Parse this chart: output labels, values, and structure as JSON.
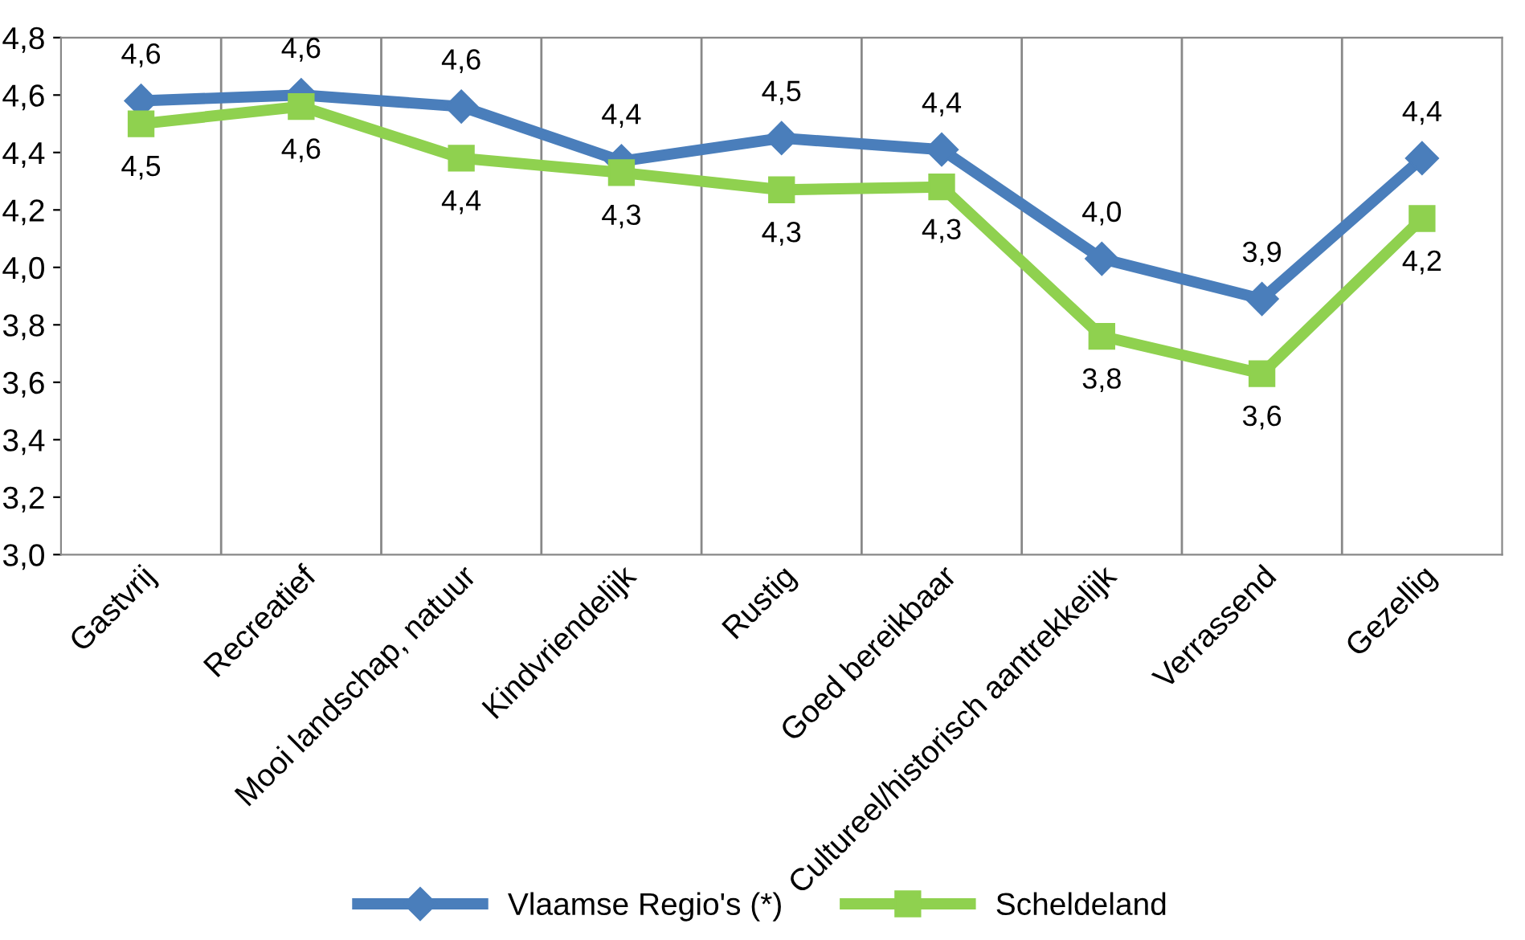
{
  "chart_data": {
    "type": "line",
    "categories": [
      "Gastvrij",
      "Recreatief",
      "Mooi landschap, natuur",
      "Kindvriendelijk",
      "Rustig",
      "Goed bereikbaar",
      "Cultureel/historisch aantrekkelijk",
      "Verrassend",
      "Gezellig"
    ],
    "series": [
      {
        "name": "Vlaamse Regio's (*)",
        "color": "#4a7ebb",
        "marker": "diamond",
        "values": [
          4.58,
          4.6,
          4.56,
          4.37,
          4.45,
          4.41,
          4.03,
          3.89,
          4.38
        ],
        "value_labels": [
          "4,6",
          "4,6",
          "4,6",
          "4,4",
          "4,5",
          "4,4",
          "4,0",
          "3,9",
          "4,4"
        ]
      },
      {
        "name": "Scheldeland",
        "color": "#8fd14f",
        "marker": "square",
        "values": [
          4.5,
          4.56,
          4.38,
          4.33,
          4.27,
          4.28,
          3.76,
          3.63,
          4.17
        ],
        "value_labels": [
          "4,5",
          "4,6",
          "4,4",
          "4,3",
          "4,3",
          "4,3",
          "3,8",
          "3,6",
          "4,2"
        ]
      }
    ],
    "ylim": [
      3.0,
      4.8
    ],
    "yticks": [
      {
        "value": 3.0,
        "label": "3,0"
      },
      {
        "value": 3.2,
        "label": "3,2"
      },
      {
        "value": 3.4,
        "label": "3,4"
      },
      {
        "value": 3.6,
        "label": "3,6"
      },
      {
        "value": 3.8,
        "label": "3,8"
      },
      {
        "value": 4.0,
        "label": "4,0"
      },
      {
        "value": 4.2,
        "label": "4,2"
      },
      {
        "value": 4.4,
        "label": "4,4"
      },
      {
        "value": 4.6,
        "label": "4,6"
      },
      {
        "value": 4.8,
        "label": "4,8"
      }
    ],
    "grid": "x",
    "legend": "bottom",
    "line_style": "solid"
  }
}
